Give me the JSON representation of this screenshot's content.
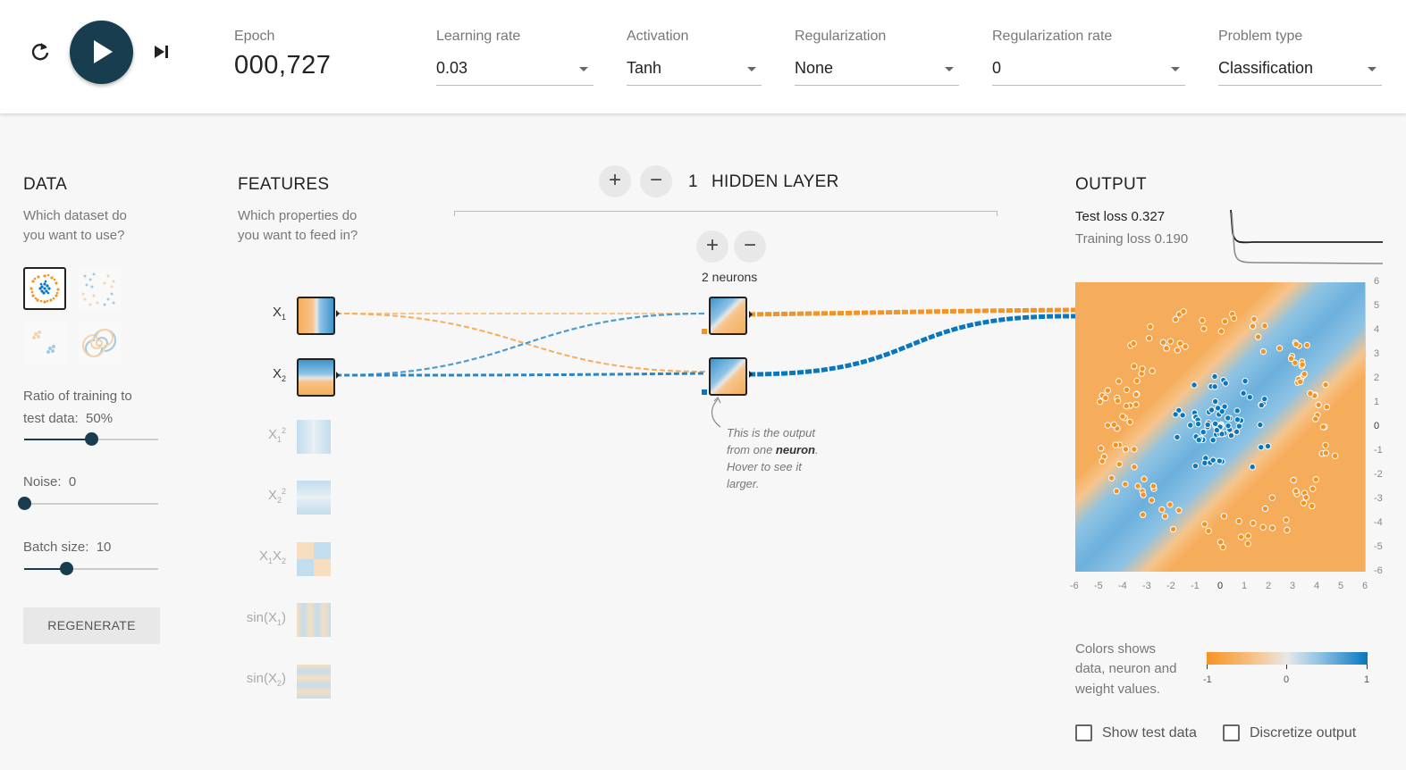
{
  "controls": {
    "epoch_label": "Epoch",
    "epoch_value": "000,727",
    "learning_rate": {
      "label": "Learning rate",
      "value": "0.03"
    },
    "activation": {
      "label": "Activation",
      "value": "Tanh"
    },
    "regularization": {
      "label": "Regularization",
      "value": "None"
    },
    "regularization_rate": {
      "label": "Regularization rate",
      "value": "0"
    },
    "problem_type": {
      "label": "Problem type",
      "value": "Classification"
    }
  },
  "data_panel": {
    "title": "DATA",
    "description_line1": "Which dataset do",
    "description_line2": "you want to use?",
    "ratio_label_line1": "Ratio of training to",
    "ratio_label_line2": "test data:  50%",
    "ratio_value": 0.5,
    "noise_label": "Noise:  0",
    "noise_value": 0,
    "batch_label": "Batch size:  10",
    "batch_value": 10,
    "regenerate_label": "REGENERATE",
    "datasets": [
      "circle",
      "xor",
      "gaussian",
      "spiral"
    ],
    "selected_dataset": "circle"
  },
  "features_panel": {
    "title": "FEATURES",
    "description_line1": "Which properties do",
    "description_line2": "you want to feed in?",
    "features": [
      {
        "name": "X1",
        "active": true
      },
      {
        "name": "X2",
        "active": true
      },
      {
        "name": "X1^2",
        "active": false
      },
      {
        "name": "X2^2",
        "active": false
      },
      {
        "name": "X1X2",
        "active": false
      },
      {
        "name": "sin(X1)",
        "active": false
      },
      {
        "name": "sin(X2)",
        "active": false
      }
    ]
  },
  "network": {
    "layer_count": "1",
    "layer_title": "HIDDEN LAYER",
    "neurons_label": "2 neurons",
    "add_icon": "plus-icon",
    "remove_icon": "minus-icon",
    "callout_line1": "This is the output",
    "callout_line2_pre": "from one ",
    "callout_line2_bold": "neuron",
    "callout_line2_post": ".",
    "callout_line3": "Hover to see it",
    "callout_line4": "larger."
  },
  "output_panel": {
    "title": "OUTPUT",
    "test_loss": "Test loss 0.327",
    "training_loss": "Training loss 0.190",
    "legend_line1": "Colors shows",
    "legend_line2": "data, neuron and",
    "legend_line3": "weight values.",
    "scale_min": "-1",
    "scale_mid": "0",
    "scale_max": "1",
    "show_test_data_label": "Show test data",
    "discretize_label": "Discretize output",
    "x_ticks": [
      "-6",
      "-5",
      "-4",
      "-3",
      "-2",
      "-1",
      "0",
      "1",
      "2",
      "3",
      "4",
      "5",
      "6"
    ],
    "y_ticks": [
      "6",
      "5",
      "4",
      "3",
      "2",
      "1",
      "0",
      "-1",
      "-2",
      "-3",
      "-4",
      "-5",
      "-6"
    ]
  },
  "colors": {
    "orange": "#f59322",
    "blue": "#0877bd",
    "dark": "#183d4e"
  }
}
